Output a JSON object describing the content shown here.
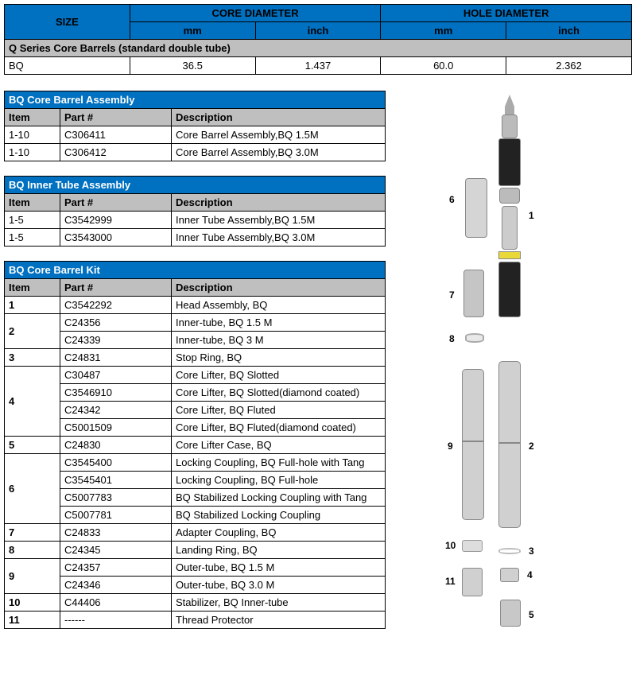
{
  "size_table": {
    "header_size": "SIZE",
    "header_core": "CORE DIAMETER",
    "header_hole": "HOLE DIAMETER",
    "sub_mm": "mm",
    "sub_inch": "inch",
    "section": "Q Series Core Barrels (standard double tube)",
    "row": {
      "name": "BQ",
      "core_mm": "36.5",
      "core_inch": "1.437",
      "hole_mm": "60.0",
      "hole_inch": "2.362"
    },
    "colors": {
      "header_bg": "#0070c0",
      "section_bg": "#bfbfbf"
    }
  },
  "assembly_table": {
    "title": "BQ Core Barrel Assembly",
    "cols": {
      "item": "Item",
      "part": "Part #",
      "desc": "Description"
    },
    "rows": [
      {
        "item": "1-10",
        "part": "C306411",
        "desc": "Core Barrel Assembly,BQ 1.5M"
      },
      {
        "item": "1-10",
        "part": "C306412",
        "desc": "Core Barrel Assembly,BQ 3.0M"
      }
    ]
  },
  "inner_table": {
    "title": "BQ Inner Tube Assembly",
    "cols": {
      "item": "Item",
      "part": "Part #",
      "desc": "Description"
    },
    "rows": [
      {
        "item": "1-5",
        "part": "C3542999",
        "desc": "Inner Tube Assembly,BQ 1.5M"
      },
      {
        "item": "1-5",
        "part": "C3543000",
        "desc": "Inner Tube Assembly,BQ 3.0M"
      }
    ]
  },
  "kit_table": {
    "title": "BQ Core Barrel Kit",
    "cols": {
      "item": "Item",
      "part": "Part #",
      "desc": "Description"
    },
    "rows": [
      {
        "item": "1",
        "part": "C3542292",
        "desc": "Head Assembly, BQ",
        "span": 1
      },
      {
        "item": "2",
        "part": "C24356",
        "desc": "Inner-tube, BQ 1.5 M",
        "span": 2
      },
      {
        "item": "",
        "part": "C24339",
        "desc": "Inner-tube, BQ 3 M"
      },
      {
        "item": "3",
        "part": "C24831",
        "desc": "Stop Ring, BQ",
        "span": 1
      },
      {
        "item": "4",
        "part": "C30487",
        "desc": "Core Lifter,  BQ Slotted",
        "span": 4
      },
      {
        "item": "",
        "part": "C3546910",
        "desc": "Core Lifter,  BQ Slotted(diamond coated)"
      },
      {
        "item": "",
        "part": "C24342",
        "desc": "Core Lifter,  BQ Fluted"
      },
      {
        "item": "",
        "part": "C5001509",
        "desc": "Core Lifter,  BQ Fluted(diamond coated)"
      },
      {
        "item": "5",
        "part": "C24830",
        "desc": "Core Lifter Case, BQ",
        "span": 1
      },
      {
        "item": "6",
        "part": "C3545400",
        "desc": "Locking Coupling, BQ Full-hole with Tang",
        "span": 4
      },
      {
        "item": "",
        "part": "C3545401",
        "desc": "Locking Coupling, BQ Full-hole"
      },
      {
        "item": "",
        "part": "C5007783",
        "desc": "BQ Stabilized Locking Coupling with Tang"
      },
      {
        "item": "",
        "part": "C5007781",
        "desc": "BQ Stabilized Locking Coupling"
      },
      {
        "item": "7",
        "part": "C24833",
        "desc": "Adapter Coupling, BQ",
        "span": 1
      },
      {
        "item": "8",
        "part": "C24345",
        "desc": "Landing Ring, BQ",
        "span": 1
      },
      {
        "item": "9",
        "part": "C24357",
        "desc": "Outer-tube, BQ 1.5 M",
        "span": 2
      },
      {
        "item": "",
        "part": "C24346",
        "desc": "Outer-tube, BQ 3.0 M"
      },
      {
        "item": "10",
        "part": "C44406",
        "desc": "Stabilizer, BQ Inner-tube",
        "span": 1
      },
      {
        "item": "11",
        "part": "------",
        "desc": "Thread Protector",
        "span": 1
      }
    ]
  },
  "diagram": {
    "labels": {
      "l1": "1",
      "l2": "2",
      "l3": "3",
      "l4": "4",
      "l5": "5",
      "l6": "6",
      "l7": "7",
      "l8": "8",
      "l9": "9",
      "l10": "10",
      "l11": "11"
    },
    "colors": {
      "tube": "#d0d0d0",
      "black": "#222222",
      "yellow": "#e8d838",
      "light": "#e8e8e8",
      "border": "#888888"
    }
  }
}
